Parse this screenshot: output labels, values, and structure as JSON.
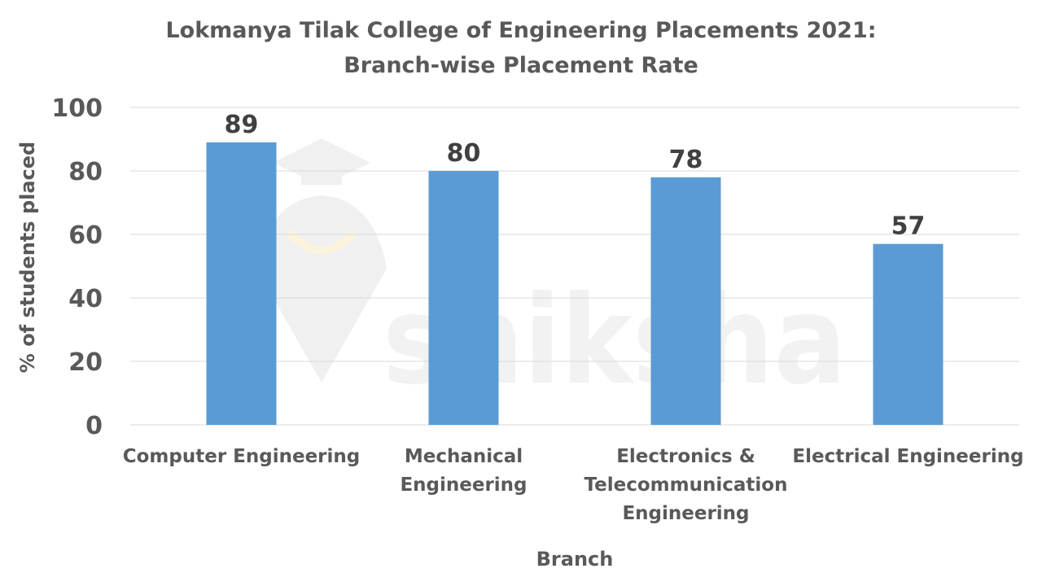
{
  "chart_data": {
    "type": "bar",
    "title": "Lokmanya Tilak College of Engineering Placements 2021:",
    "subtitle": "Branch-wise Placement Rate",
    "xlabel": "Branch",
    "ylabel": "% of students placed",
    "categories": [
      "Computer Engineering",
      "Mechanical Engineering",
      "Electronics & Telecommunication Engineering",
      "Electrical Engineering"
    ],
    "category_lines": [
      [
        "Computer Engineering"
      ],
      [
        "Mechanical",
        "Engineering"
      ],
      [
        "Electronics &",
        "Telecommunication",
        "Engineering"
      ],
      [
        "Electrical Engineering"
      ]
    ],
    "values": [
      89,
      80,
      78,
      57
    ],
    "ylim": [
      0,
      100
    ],
    "yticks": [
      0,
      20,
      40,
      60,
      80,
      100
    ],
    "grid": true,
    "legend": "none",
    "bar_color": "#5b9bd5"
  },
  "watermark": {
    "text": "shiksha",
    "icon": "shiksha-logo-icon"
  }
}
